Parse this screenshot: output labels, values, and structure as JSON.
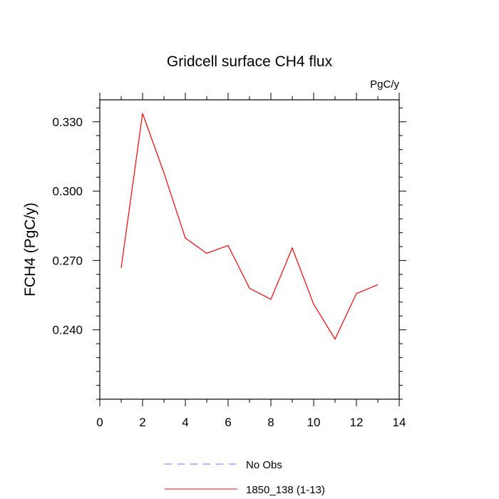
{
  "chart_data": {
    "type": "line",
    "title": "Gridcell surface CH4 flux",
    "units_label": "PgC/y",
    "xlabel": "",
    "ylabel": "FCH4  (PgC/y)",
    "xlim": [
      0,
      14
    ],
    "ylim": [
      0.21,
      0.3395
    ],
    "xticks": [
      0,
      2,
      4,
      6,
      8,
      10,
      12,
      14
    ],
    "xtick_labels": [
      "0",
      "2",
      "4",
      "6",
      "8",
      "10",
      "12",
      "14"
    ],
    "yticks": [
      0.24,
      0.27,
      0.3,
      0.33
    ],
    "ytick_labels": [
      "0.240",
      "0.270",
      "0.300",
      "0.330"
    ],
    "grid": false,
    "legend_position": "bottom",
    "series": [
      {
        "name": "1850_138 (1-13)",
        "color": "#ff0000",
        "style": "solid",
        "x": [
          1,
          2,
          3,
          4,
          5,
          6,
          7,
          8,
          9,
          10,
          11,
          12,
          13
        ],
        "y": [
          0.2668,
          0.3336,
          0.3079,
          0.2797,
          0.2731,
          0.2765,
          0.258,
          0.2532,
          0.2754,
          0.2511,
          0.236,
          0.2557,
          0.2595
        ]
      }
    ],
    "legend": [
      {
        "label": "No Obs",
        "color": "#6a6aff",
        "style": "dashed"
      },
      {
        "label": "1850_138 (1-13)",
        "color": "#ff0000",
        "style": "solid"
      }
    ]
  }
}
